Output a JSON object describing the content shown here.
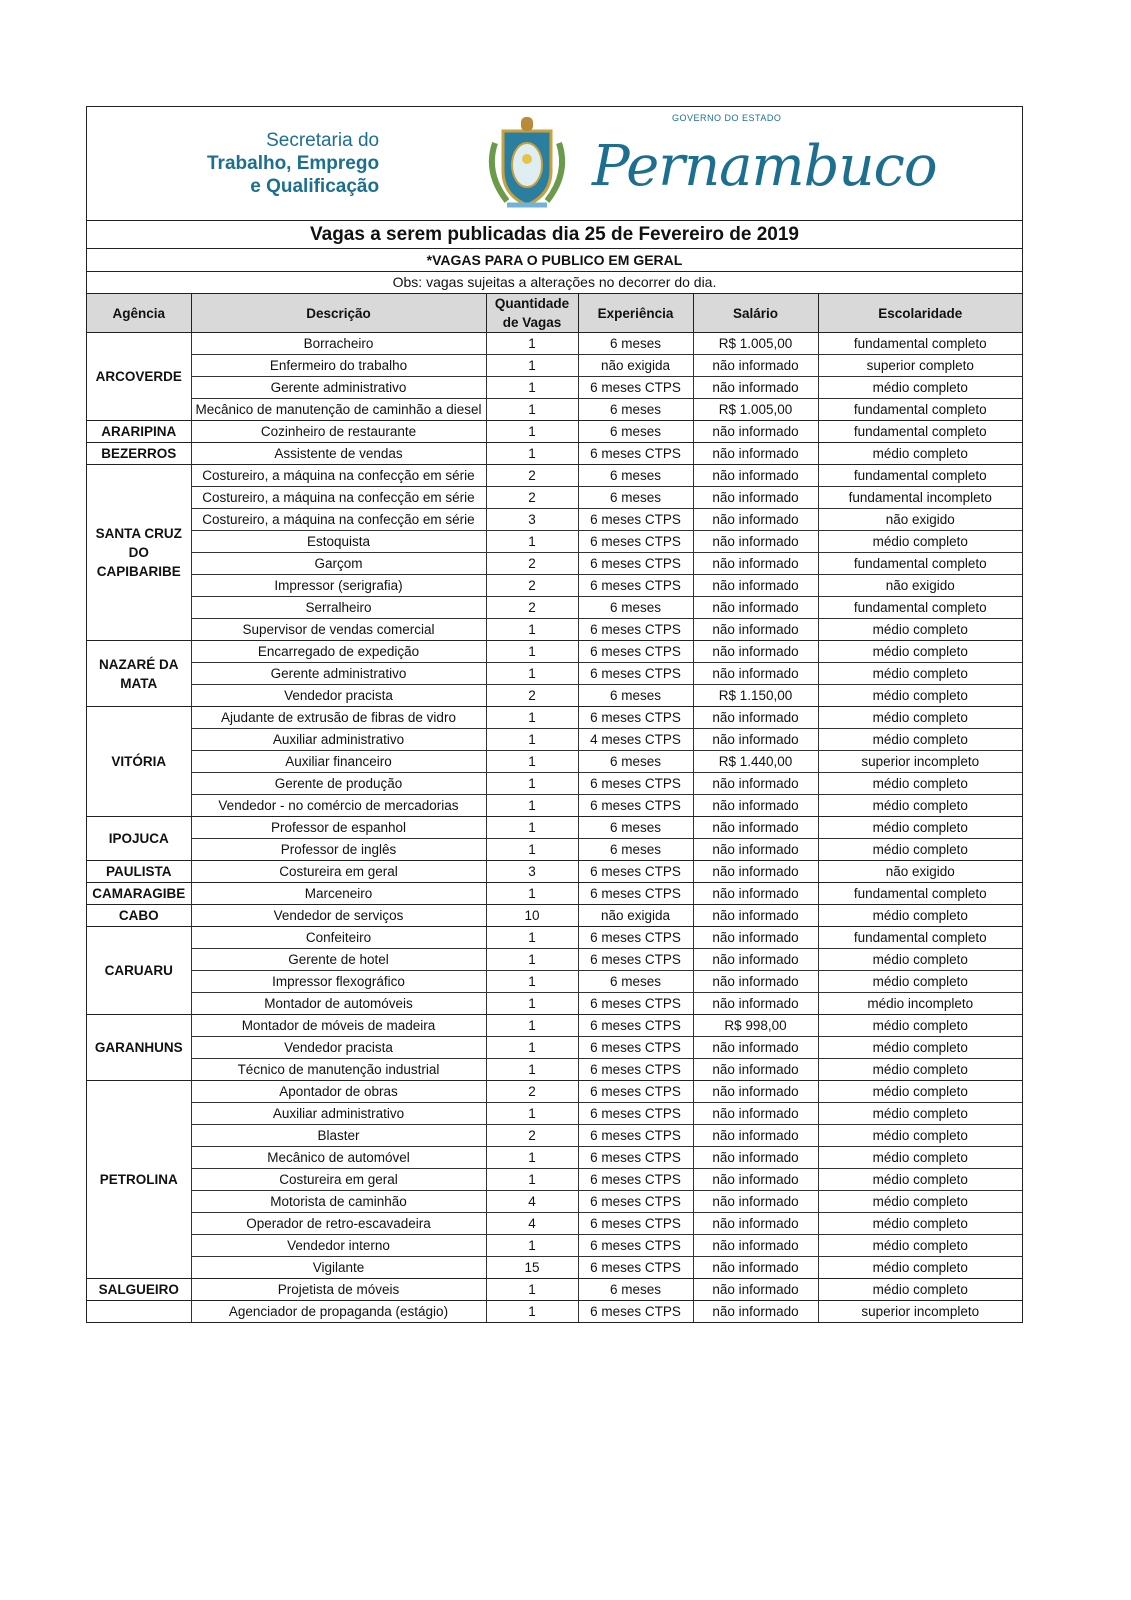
{
  "header": {
    "secretaria_line1": "Secretaria do",
    "secretaria_line2": "Trabalho, Emprego",
    "secretaria_line3": "e Qualificação",
    "governo": "GOVERNO DO ESTADO",
    "estado": "Pernambuco",
    "title": "Vagas a serem publicadas dia 25 de Fevereiro de 2019",
    "subtitle": "*VAGAS PARA O PUBLICO EM GERAL",
    "obs": "Obs: vagas sujeitas a alterações no decorrer do dia."
  },
  "columns": [
    "Agência",
    "Descrição",
    "Quantidade de Vagas",
    "Experiência",
    "Salário",
    "Escolaridade"
  ],
  "groups": [
    {
      "agency": "ARCOVERDE",
      "rows": [
        [
          "Borracheiro",
          "1",
          "6 meses",
          "R$ 1.005,00",
          "fundamental completo"
        ],
        [
          "Enfermeiro do trabalho",
          "1",
          "não exigida",
          "não informado",
          "superior completo"
        ],
        [
          "Gerente administrativo",
          "1",
          "6 meses CTPS",
          "não informado",
          "médio completo"
        ],
        [
          "Mecânico de manutenção de caminhão a diesel",
          "1",
          "6 meses",
          "R$ 1.005,00",
          "fundamental completo"
        ]
      ]
    },
    {
      "agency": "ARARIPINA",
      "rows": [
        [
          "Cozinheiro de restaurante",
          "1",
          "6 meses",
          "não informado",
          "fundamental completo"
        ]
      ]
    },
    {
      "agency": "BEZERROS",
      "rows": [
        [
          "Assistente de vendas",
          "1",
          "6 meses CTPS",
          "não informado",
          "médio completo"
        ]
      ]
    },
    {
      "agency": "SANTA CRUZ DO CAPIBARIBE",
      "rows": [
        [
          "Costureiro, a máquina na confecção em série",
          "2",
          "6 meses",
          "não informado",
          "fundamental completo"
        ],
        [
          "Costureiro, a máquina na confecção em série",
          "2",
          "6 meses",
          "não informado",
          "fundamental incompleto"
        ],
        [
          "Costureiro, a máquina na confecção em série",
          "3",
          "6 meses CTPS",
          "não informado",
          "não exigido"
        ],
        [
          "Estoquista",
          "1",
          "6 meses CTPS",
          "não informado",
          "médio completo"
        ],
        [
          "Garçom",
          "2",
          "6 meses CTPS",
          "não informado",
          "fundamental completo"
        ],
        [
          "Impressor (serigrafia)",
          "2",
          "6 meses CTPS",
          "não informado",
          "não exigido"
        ],
        [
          "Serralheiro",
          "2",
          "6 meses",
          "não informado",
          "fundamental completo"
        ],
        [
          "Supervisor de vendas comercial",
          "1",
          "6 meses CTPS",
          "não informado",
          "médio completo"
        ]
      ]
    },
    {
      "agency": "NAZARÉ DA MATA",
      "rows": [
        [
          "Encarregado de expedição",
          "1",
          "6 meses CTPS",
          "não informado",
          "médio completo"
        ],
        [
          "Gerente administrativo",
          "1",
          "6 meses CTPS",
          "não informado",
          "médio completo"
        ],
        [
          "Vendedor pracista",
          "2",
          "6 meses",
          "R$ 1.150,00",
          "médio completo"
        ]
      ]
    },
    {
      "agency": "VITÓRIA",
      "rows": [
        [
          "Ajudante de extrusão de fibras de vidro",
          "1",
          "6 meses CTPS",
          "não informado",
          "médio completo"
        ],
        [
          "Auxiliar administrativo",
          "1",
          "4 meses CTPS",
          "não informado",
          "médio completo"
        ],
        [
          "Auxiliar financeiro",
          "1",
          "6 meses",
          "R$ 1.440,00",
          "superior incompleto"
        ],
        [
          "Gerente de produção",
          "1",
          "6 meses CTPS",
          "não informado",
          "médio completo"
        ],
        [
          "Vendedor - no comércio de mercadorias",
          "1",
          "6 meses CTPS",
          "não informado",
          "médio completo"
        ]
      ]
    },
    {
      "agency": "IPOJUCA",
      "rows": [
        [
          "Professor de espanhol",
          "1",
          "6 meses",
          "não informado",
          "médio completo"
        ],
        [
          "Professor de inglês",
          "1",
          "6 meses",
          "não informado",
          "médio completo"
        ]
      ]
    },
    {
      "agency": "PAULISTA",
      "rows": [
        [
          "Costureira em geral",
          "3",
          "6 meses CTPS",
          "não informado",
          "não exigido"
        ]
      ]
    },
    {
      "agency": "CAMARAGIBE",
      "rows": [
        [
          "Marceneiro",
          "1",
          "6 meses CTPS",
          "não informado",
          "fundamental completo"
        ]
      ]
    },
    {
      "agency": "CABO",
      "rows": [
        [
          "Vendedor de serviços",
          "10",
          "não exigida",
          "não informado",
          "médio completo"
        ]
      ]
    },
    {
      "agency": "CARUARU",
      "rows": [
        [
          "Confeiteiro",
          "1",
          "6 meses CTPS",
          "não informado",
          "fundamental completo"
        ],
        [
          "Gerente de hotel",
          "1",
          "6 meses CTPS",
          "não informado",
          "médio completo"
        ],
        [
          "Impressor flexográfico",
          "1",
          "6 meses",
          "não informado",
          "médio completo"
        ],
        [
          "Montador de automóveis",
          "1",
          "6 meses CTPS",
          "não informado",
          "médio incompleto"
        ]
      ]
    },
    {
      "agency": "GARANHUNS",
      "rows": [
        [
          "Montador de móveis de madeira",
          "1",
          "6 meses CTPS",
          "R$ 998,00",
          "médio completo"
        ],
        [
          "Vendedor pracista",
          "1",
          "6 meses CTPS",
          "não informado",
          "médio completo"
        ],
        [
          "Técnico de manutenção industrial",
          "1",
          "6 meses CTPS",
          "não informado",
          "médio completo"
        ]
      ]
    },
    {
      "agency": "PETROLINA",
      "rows": [
        [
          "Apontador de obras",
          "2",
          "6 meses CTPS",
          "não informado",
          "médio completo"
        ],
        [
          "Auxiliar administrativo",
          "1",
          "6 meses CTPS",
          "não informado",
          "médio completo"
        ],
        [
          "Blaster",
          "2",
          "6 meses CTPS",
          "não informado",
          "médio completo"
        ],
        [
          "Mecânico de automóvel",
          "1",
          "6 meses CTPS",
          "não informado",
          "médio completo"
        ],
        [
          "Costureira em geral",
          "1",
          "6 meses CTPS",
          "não informado",
          "médio completo"
        ],
        [
          "Motorista de caminhão",
          "4",
          "6 meses CTPS",
          "não informado",
          "médio completo"
        ],
        [
          "Operador de retro-escavadeira",
          "4",
          "6 meses CTPS",
          "não informado",
          "médio completo"
        ],
        [
          "Vendedor interno",
          "1",
          "6 meses CTPS",
          "não informado",
          "médio completo"
        ],
        [
          "Vigilante",
          "15",
          "6 meses CTPS",
          "não informado",
          "médio completo"
        ]
      ]
    },
    {
      "agency": "SALGUEIRO",
      "rows": [
        [
          "Projetista de móveis",
          "1",
          "6 meses",
          "não informado",
          "médio completo"
        ]
      ]
    },
    {
      "agency": "",
      "rows": [
        [
          "Agenciador de propaganda (estágio)",
          "1",
          "6 meses CTPS",
          "não informado",
          "superior incompleto"
        ]
      ]
    }
  ]
}
